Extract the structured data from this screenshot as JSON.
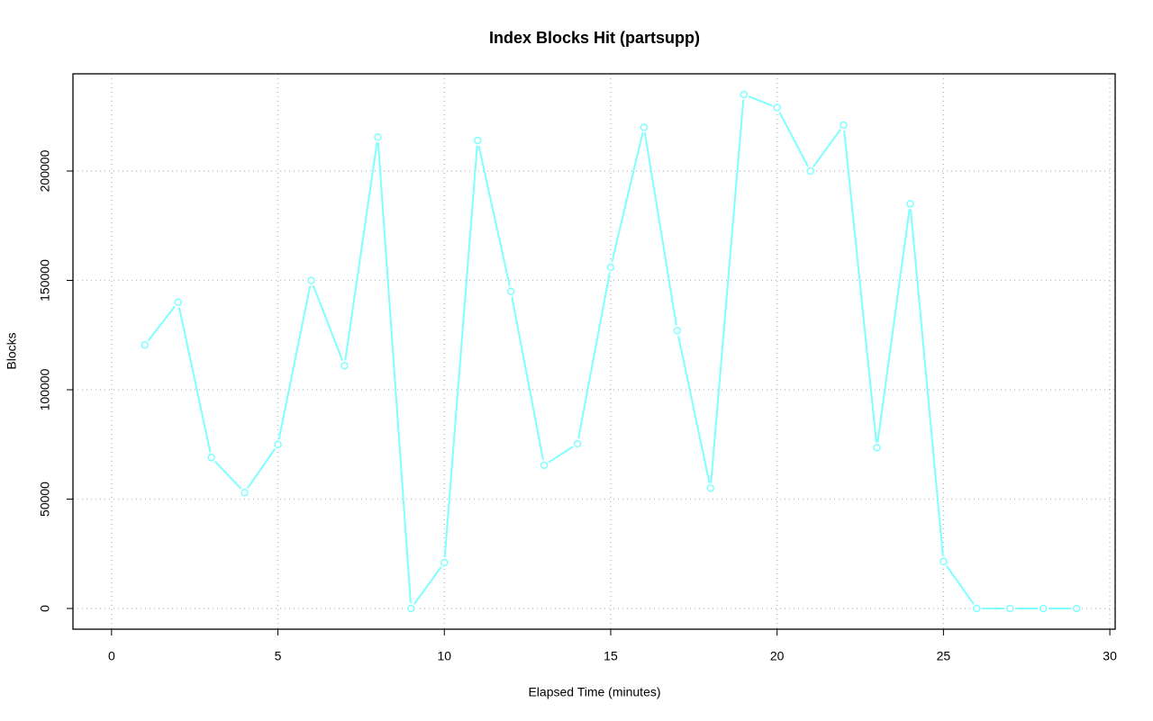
{
  "chart_data": {
    "type": "line",
    "title": "Index Blocks Hit (partsupp)",
    "x_label": "Elapsed Time (minutes)",
    "y_label": "Blocks",
    "x": [
      1,
      2,
      3,
      4,
      5,
      6,
      7,
      8,
      9,
      10,
      11,
      12,
      13,
      14,
      15,
      16,
      17,
      18,
      19,
      20,
      21,
      22,
      23,
      24,
      25,
      26,
      27,
      28,
      29
    ],
    "values": [
      120500,
      140000,
      69000,
      53000,
      75000,
      150000,
      111000,
      215500,
      0,
      21000,
      214000,
      145000,
      65500,
      75300,
      156000,
      220000,
      127000,
      55000,
      235000,
      229000,
      200000,
      221000,
      73500,
      185000,
      21500,
      0,
      0,
      0,
      0
    ],
    "color": "#80ffff",
    "xlim": [
      -1.16,
      30.16
    ],
    "ylim": [
      -9465,
      244444
    ],
    "xticks": [
      0,
      5,
      10,
      15,
      20,
      25,
      30
    ],
    "yticks": [
      0,
      50000,
      100000,
      150000,
      200000
    ],
    "grid": true
  }
}
